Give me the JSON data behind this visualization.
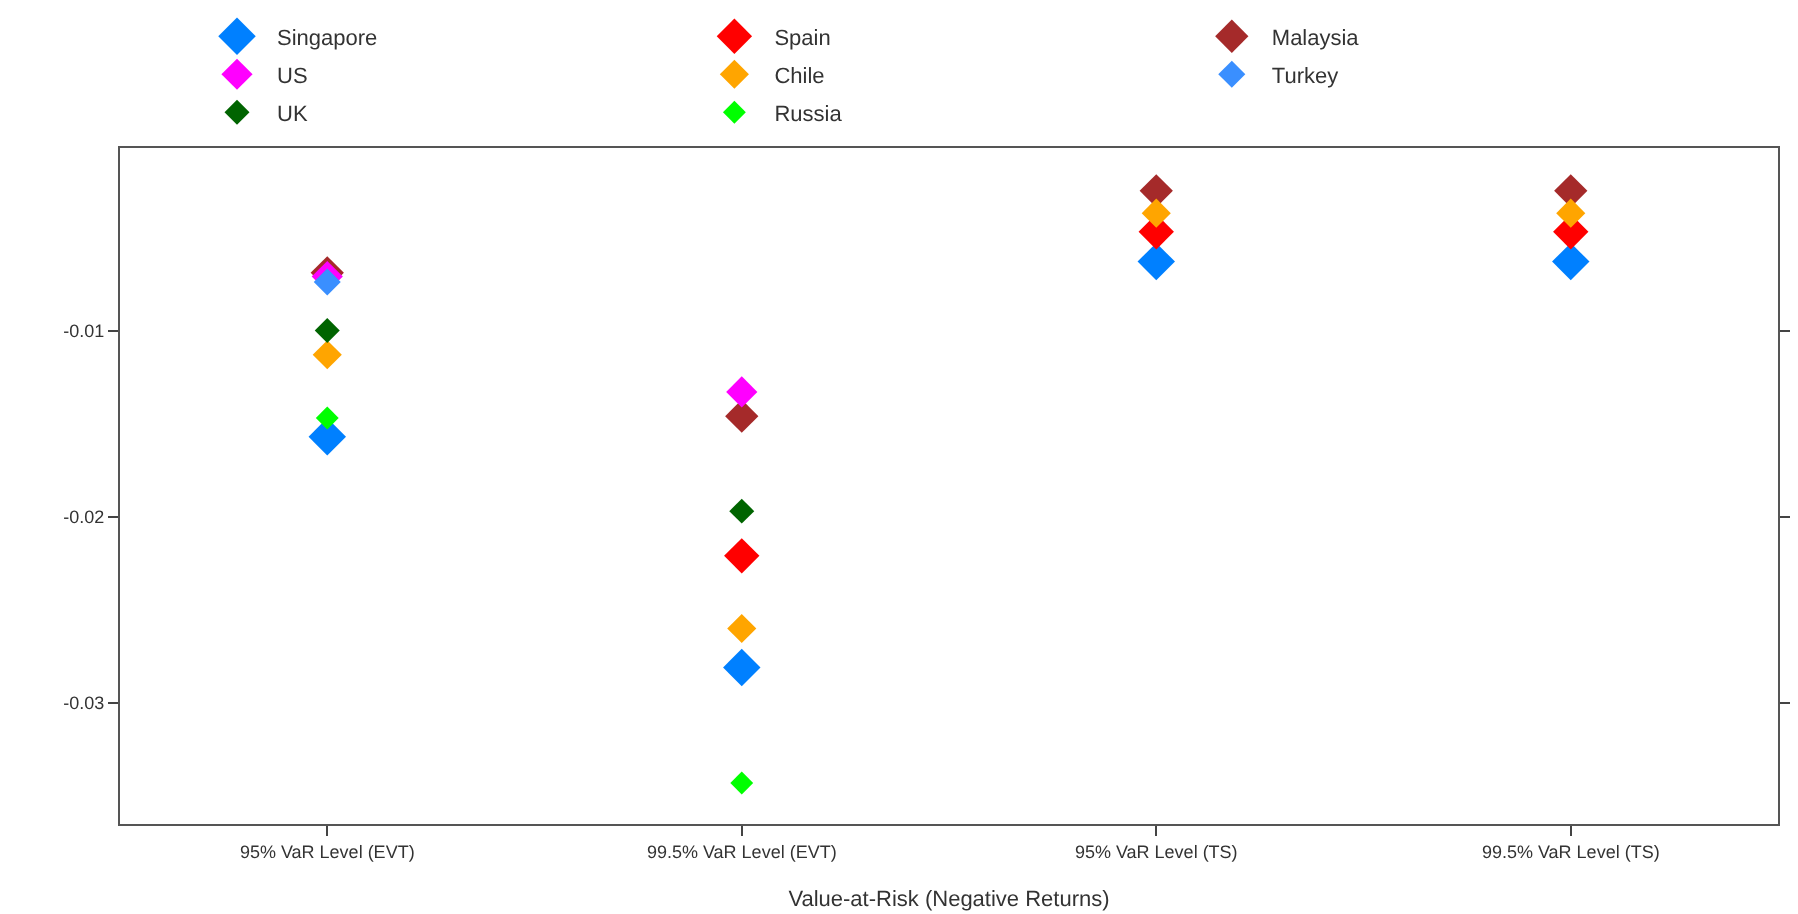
{
  "chart_data": {
    "type": "scatter",
    "xlabel": "Value-at-Risk (Negative Returns)",
    "categories": [
      "95% VaR Level (EVT)",
      "99.5% VaR Level (EVT)",
      "95% VaR Level (TS)",
      "99.5% VaR Level (TS)"
    ],
    "series": [
      {
        "name": "Singapore",
        "color": "#0080ff",
        "values": [
          -0.0157,
          -0.0281,
          -0.0063,
          -0.0063
        ]
      },
      {
        "name": "Spain",
        "color": "#ff0000",
        "values": [
          null,
          -0.0221,
          -0.0047,
          -0.0047
        ]
      },
      {
        "name": "Malaysia",
        "color": "#a52a2a",
        "values": [
          -0.0069,
          -0.0146,
          -0.0025,
          -0.0025
        ]
      },
      {
        "name": "US",
        "color": "#ff00ff",
        "values": [
          -0.0071,
          -0.0133,
          null,
          null
        ]
      },
      {
        "name": "Chile",
        "color": "#ffa500",
        "values": [
          -0.0113,
          -0.026,
          -0.0037,
          -0.0037
        ]
      },
      {
        "name": "Turkey",
        "color": "#3a8fff",
        "values": [
          -0.0074,
          null,
          null,
          null
        ]
      },
      {
        "name": "UK",
        "color": "#006400",
        "values": [
          -0.01,
          -0.0197,
          null,
          null
        ]
      },
      {
        "name": "Russia",
        "color": "#00ff00",
        "values": [
          -0.0147,
          -0.0343,
          null,
          null
        ]
      }
    ],
    "ylim": [
      -0.0365,
      -0.0002
    ],
    "yticks": [
      {
        "value": -0.01,
        "label": "-0.01"
      },
      {
        "value": -0.02,
        "label": "-0.02"
      },
      {
        "value": -0.03,
        "label": "-0.03"
      }
    ],
    "marker": "diamond",
    "legend": "top"
  }
}
